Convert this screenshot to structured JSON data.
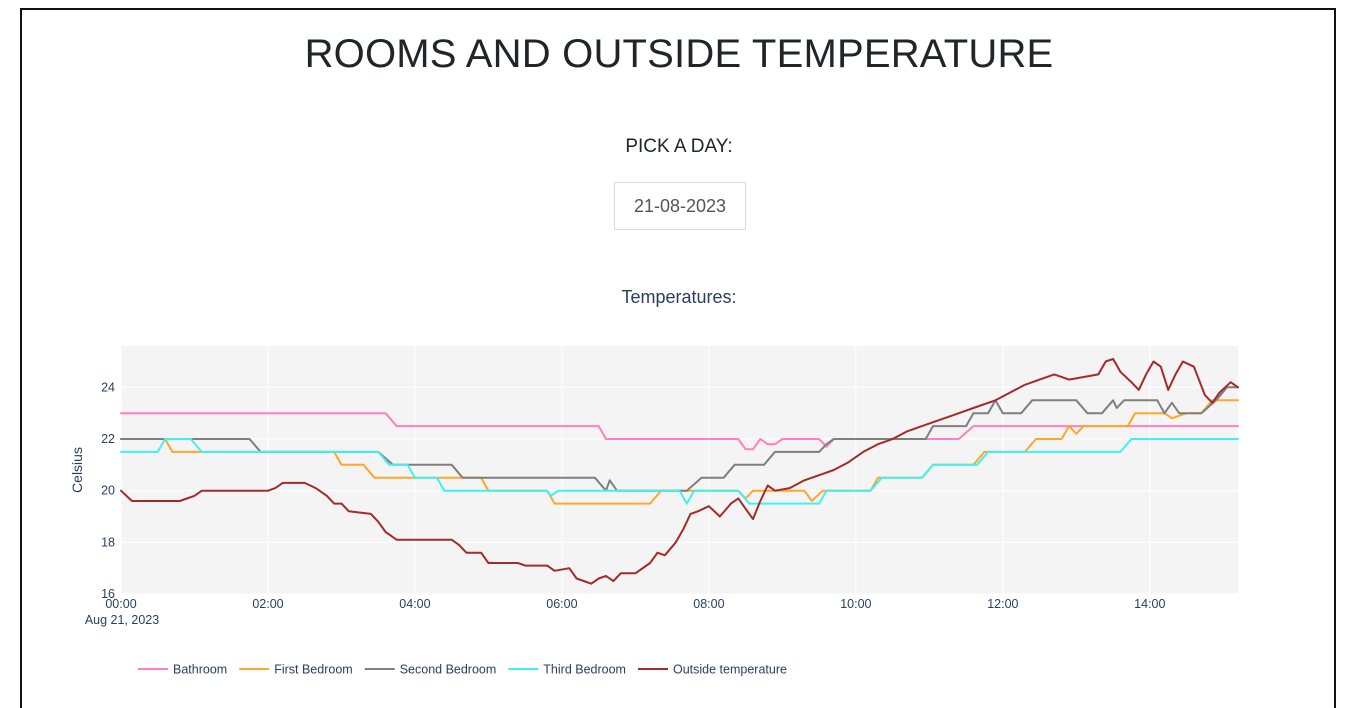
{
  "page": {
    "title": "ROOMS AND OUTSIDE TEMPERATURE",
    "pick_label": "PICK A DAY:",
    "date_value": "21-08-2023"
  },
  "chart_data": {
    "type": "line",
    "title": "Temperatures:",
    "xlabel": "",
    "ylabel": "Celsius",
    "x_unit": "hours",
    "xlim": [
      0,
      15.2
    ],
    "ylim": [
      16,
      25.6
    ],
    "x_ticks": [
      {
        "value": 0,
        "label": "00:00"
      },
      {
        "value": 2,
        "label": "02:00"
      },
      {
        "value": 4,
        "label": "04:00"
      },
      {
        "value": 6,
        "label": "06:00"
      },
      {
        "value": 8,
        "label": "08:00"
      },
      {
        "value": 10,
        "label": "10:00"
      },
      {
        "value": 12,
        "label": "12:00"
      },
      {
        "value": 14,
        "label": "14:00"
      }
    ],
    "x_date_label": "Aug 21, 2023",
    "y_ticks": [
      16,
      18,
      20,
      22,
      24
    ],
    "grid": true,
    "legend_position": "bottom",
    "series": [
      {
        "name": "Bathroom",
        "color": "#ff7fbf",
        "points": [
          [
            0,
            23
          ],
          [
            3.6,
            23
          ],
          [
            3.75,
            22.5
          ],
          [
            6.5,
            22.5
          ],
          [
            6.6,
            22
          ],
          [
            8.4,
            22
          ],
          [
            8.5,
            21.6
          ],
          [
            8.6,
            21.6
          ],
          [
            8.7,
            22
          ],
          [
            8.8,
            21.8
          ],
          [
            8.9,
            21.8
          ],
          [
            9.0,
            22
          ],
          [
            9.5,
            22
          ],
          [
            9.6,
            21.7
          ],
          [
            9.7,
            22
          ],
          [
            11.4,
            22
          ],
          [
            11.6,
            22.5
          ],
          [
            15.2,
            22.5
          ]
        ]
      },
      {
        "name": "First Bedroom",
        "color": "#ffa62b",
        "points": [
          [
            0,
            22
          ],
          [
            0.6,
            22
          ],
          [
            0.7,
            21.5
          ],
          [
            2.9,
            21.5
          ],
          [
            3.0,
            21
          ],
          [
            3.3,
            21
          ],
          [
            3.45,
            20.5
          ],
          [
            4.9,
            20.5
          ],
          [
            5.0,
            20
          ],
          [
            5.8,
            20
          ],
          [
            5.9,
            19.5
          ],
          [
            7.2,
            19.5
          ],
          [
            7.35,
            20
          ],
          [
            8.4,
            20
          ],
          [
            8.5,
            19.7
          ],
          [
            8.6,
            20
          ],
          [
            9.3,
            20
          ],
          [
            9.4,
            19.6
          ],
          [
            9.55,
            20
          ],
          [
            10.2,
            20
          ],
          [
            10.3,
            20.5
          ],
          [
            10.9,
            20.5
          ],
          [
            11.05,
            21
          ],
          [
            11.6,
            21
          ],
          [
            11.75,
            21.5
          ],
          [
            12.3,
            21.5
          ],
          [
            12.45,
            22
          ],
          [
            12.8,
            22
          ],
          [
            12.9,
            22.5
          ],
          [
            13.0,
            22.2
          ],
          [
            13.1,
            22.5
          ],
          [
            13.7,
            22.5
          ],
          [
            13.8,
            23
          ],
          [
            14.2,
            23
          ],
          [
            14.3,
            22.8
          ],
          [
            14.5,
            23
          ],
          [
            14.7,
            23
          ],
          [
            14.85,
            23.5
          ],
          [
            15.2,
            23.5
          ]
        ]
      },
      {
        "name": "Second Bedroom",
        "color": "#7f7f7f",
        "points": [
          [
            0,
            22
          ],
          [
            1.75,
            22
          ],
          [
            1.9,
            21.5
          ],
          [
            3.5,
            21.5
          ],
          [
            3.7,
            21
          ],
          [
            4.5,
            21
          ],
          [
            4.65,
            20.5
          ],
          [
            6.45,
            20.5
          ],
          [
            6.6,
            20
          ],
          [
            6.65,
            20.4
          ],
          [
            6.75,
            20
          ],
          [
            7.7,
            20
          ],
          [
            7.9,
            20.5
          ],
          [
            8.2,
            20.5
          ],
          [
            8.35,
            21
          ],
          [
            8.75,
            21
          ],
          [
            8.9,
            21.5
          ],
          [
            9.5,
            21.5
          ],
          [
            9.6,
            21.8
          ],
          [
            9.7,
            22
          ],
          [
            10.95,
            22
          ],
          [
            11.05,
            22.5
          ],
          [
            11.5,
            22.5
          ],
          [
            11.6,
            23
          ],
          [
            11.8,
            23
          ],
          [
            11.9,
            23.5
          ],
          [
            12.0,
            23
          ],
          [
            12.25,
            23
          ],
          [
            12.4,
            23.5
          ],
          [
            13.0,
            23.5
          ],
          [
            13.15,
            23
          ],
          [
            13.35,
            23
          ],
          [
            13.5,
            23.5
          ],
          [
            13.55,
            23.2
          ],
          [
            13.65,
            23.5
          ],
          [
            14.1,
            23.5
          ],
          [
            14.2,
            23
          ],
          [
            14.3,
            23.4
          ],
          [
            14.4,
            23
          ],
          [
            14.7,
            23
          ],
          [
            14.9,
            23.5
          ],
          [
            15.05,
            24
          ],
          [
            15.2,
            24
          ]
        ]
      },
      {
        "name": "Third Bedroom",
        "color": "#3ff1f1",
        "points": [
          [
            0,
            21.5
          ],
          [
            0.5,
            21.5
          ],
          [
            0.6,
            22
          ],
          [
            0.95,
            22
          ],
          [
            1.1,
            21.5
          ],
          [
            3.5,
            21.5
          ],
          [
            3.65,
            21
          ],
          [
            3.9,
            21
          ],
          [
            4.0,
            20.5
          ],
          [
            4.3,
            20.5
          ],
          [
            4.4,
            20
          ],
          [
            5.8,
            20
          ],
          [
            5.85,
            19.8
          ],
          [
            5.95,
            20
          ],
          [
            7.6,
            20
          ],
          [
            7.7,
            19.5
          ],
          [
            7.8,
            20
          ],
          [
            8.4,
            20
          ],
          [
            8.55,
            19.5
          ],
          [
            9.5,
            19.5
          ],
          [
            9.6,
            20
          ],
          [
            10.2,
            20
          ],
          [
            10.35,
            20.5
          ],
          [
            10.9,
            20.5
          ],
          [
            11.05,
            21
          ],
          [
            11.65,
            21
          ],
          [
            11.8,
            21.5
          ],
          [
            13.6,
            21.5
          ],
          [
            13.75,
            22
          ],
          [
            15.2,
            22
          ]
        ]
      },
      {
        "name": "Outside temperature",
        "color": "#a52a2a",
        "points": [
          [
            0,
            20
          ],
          [
            0.15,
            19.6
          ],
          [
            0.8,
            19.6
          ],
          [
            1.0,
            19.8
          ],
          [
            1.1,
            20
          ],
          [
            2.0,
            20
          ],
          [
            2.1,
            20.1
          ],
          [
            2.2,
            20.3
          ],
          [
            2.5,
            20.3
          ],
          [
            2.65,
            20.1
          ],
          [
            2.8,
            19.8
          ],
          [
            2.9,
            19.5
          ],
          [
            3.0,
            19.5
          ],
          [
            3.1,
            19.2
          ],
          [
            3.4,
            19.1
          ],
          [
            3.5,
            18.8
          ],
          [
            3.6,
            18.4
          ],
          [
            3.75,
            18.1
          ],
          [
            4.5,
            18.1
          ],
          [
            4.6,
            17.9
          ],
          [
            4.7,
            17.6
          ],
          [
            4.9,
            17.6
          ],
          [
            5.0,
            17.2
          ],
          [
            5.4,
            17.2
          ],
          [
            5.5,
            17.1
          ],
          [
            5.8,
            17.1
          ],
          [
            5.9,
            16.9
          ],
          [
            6.1,
            17
          ],
          [
            6.2,
            16.6
          ],
          [
            6.4,
            16.4
          ],
          [
            6.5,
            16.6
          ],
          [
            6.6,
            16.7
          ],
          [
            6.7,
            16.5
          ],
          [
            6.8,
            16.8
          ],
          [
            7.0,
            16.8
          ],
          [
            7.2,
            17.2
          ],
          [
            7.3,
            17.6
          ],
          [
            7.4,
            17.5
          ],
          [
            7.55,
            18
          ],
          [
            7.65,
            18.5
          ],
          [
            7.75,
            19.1
          ],
          [
            7.85,
            19.2
          ],
          [
            8.0,
            19.4
          ],
          [
            8.15,
            19
          ],
          [
            8.3,
            19.5
          ],
          [
            8.4,
            19.7
          ],
          [
            8.5,
            19.3
          ],
          [
            8.6,
            18.9
          ],
          [
            8.7,
            19.6
          ],
          [
            8.8,
            20.2
          ],
          [
            8.9,
            20
          ],
          [
            9.1,
            20.1
          ],
          [
            9.3,
            20.4
          ],
          [
            9.5,
            20.6
          ],
          [
            9.7,
            20.8
          ],
          [
            9.9,
            21.1
          ],
          [
            10.1,
            21.5
          ],
          [
            10.3,
            21.8
          ],
          [
            10.5,
            22
          ],
          [
            10.7,
            22.3
          ],
          [
            10.9,
            22.5
          ],
          [
            11.1,
            22.7
          ],
          [
            11.3,
            22.9
          ],
          [
            11.6,
            23.2
          ],
          [
            11.9,
            23.5
          ],
          [
            12.1,
            23.8
          ],
          [
            12.3,
            24.1
          ],
          [
            12.5,
            24.3
          ],
          [
            12.7,
            24.5
          ],
          [
            12.9,
            24.3
          ],
          [
            13.1,
            24.4
          ],
          [
            13.3,
            24.5
          ],
          [
            13.4,
            25
          ],
          [
            13.5,
            25.1
          ],
          [
            13.6,
            24.6
          ],
          [
            13.75,
            24.2
          ],
          [
            13.85,
            23.9
          ],
          [
            13.95,
            24.5
          ],
          [
            14.05,
            25
          ],
          [
            14.15,
            24.8
          ],
          [
            14.25,
            23.9
          ],
          [
            14.35,
            24.5
          ],
          [
            14.45,
            25
          ],
          [
            14.6,
            24.8
          ],
          [
            14.75,
            23.7
          ],
          [
            14.85,
            23.4
          ],
          [
            14.95,
            23.8
          ],
          [
            15.1,
            24.2
          ],
          [
            15.2,
            24
          ]
        ]
      }
    ]
  }
}
